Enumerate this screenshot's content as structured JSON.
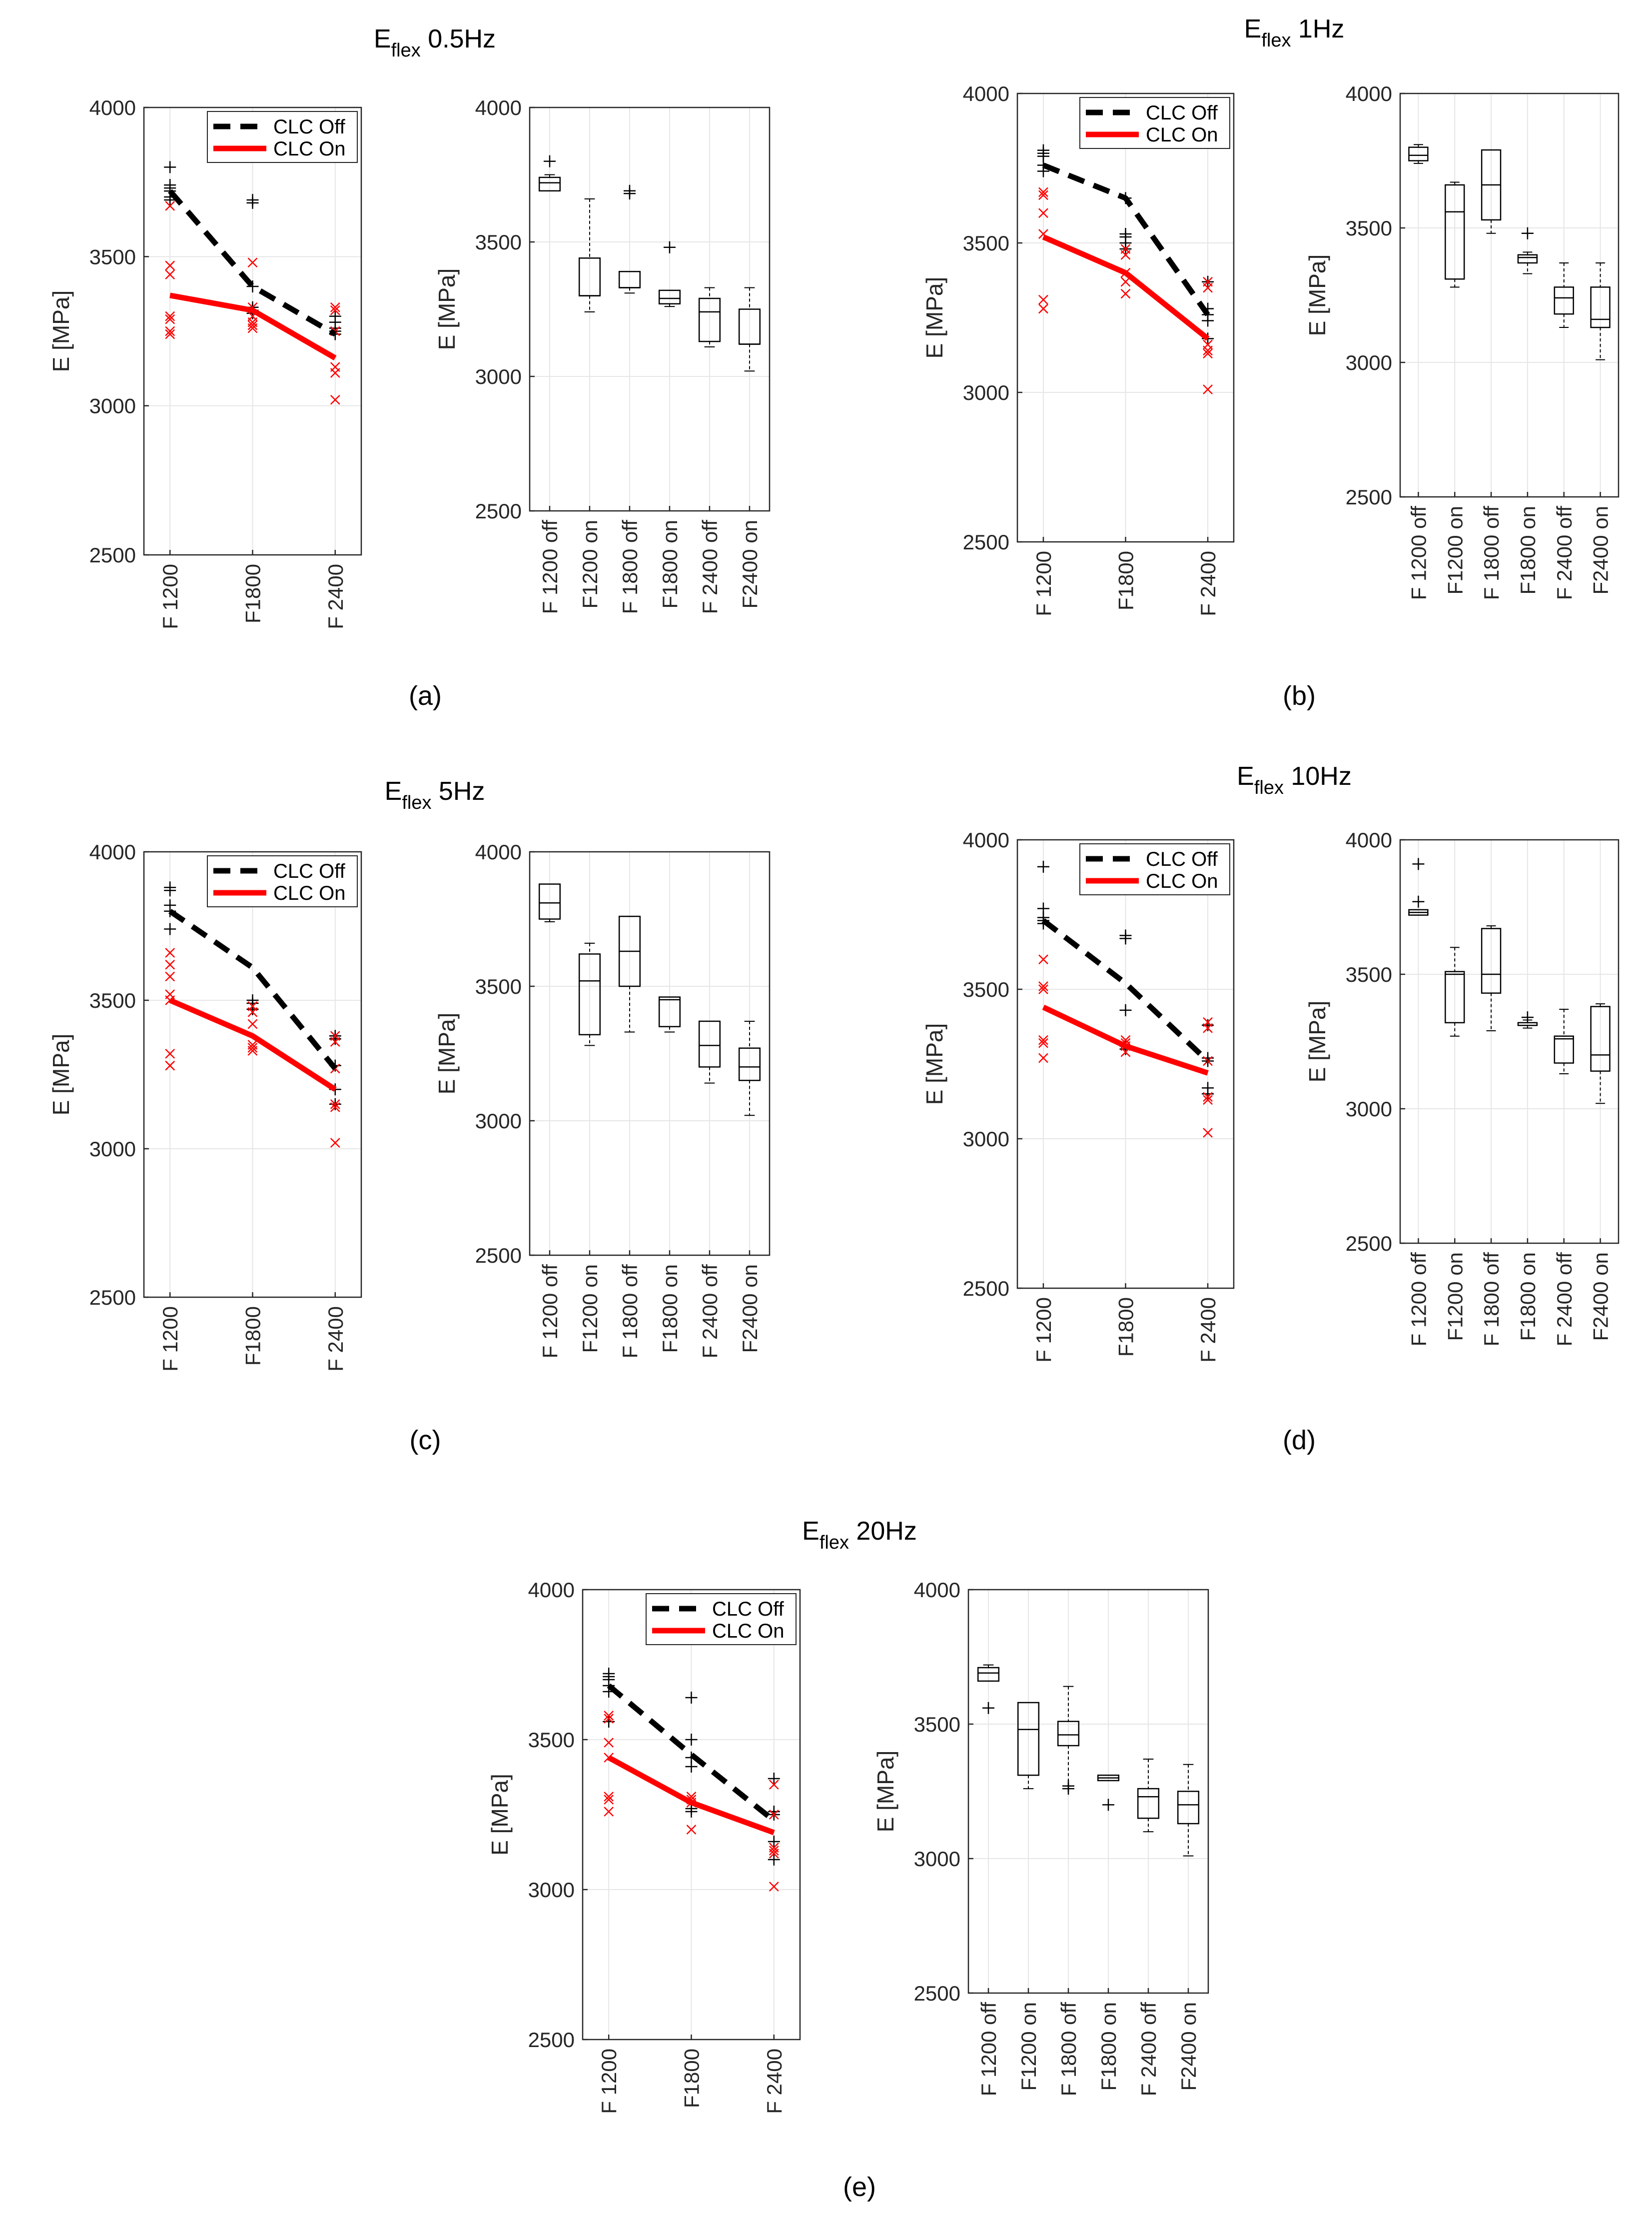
{
  "figure": {
    "panel_labels": [
      "(a)",
      "(b)",
      "(c)",
      "(d)",
      "(e)"
    ],
    "colors": {
      "clc_off": "#000000",
      "clc_on": "#ff0000",
      "grid": "#e6e6e6",
      "box": "#000000"
    }
  },
  "chart_data": [
    {
      "panel": "(a)",
      "title_main": "E",
      "title_sub": "flex",
      "title_rest": " 0.5Hz",
      "type": "line",
      "ylabel": "E [MPa]",
      "ylim": [
        2500,
        4000
      ],
      "yticks": [
        2500,
        3000,
        3500,
        4000
      ],
      "grid": true,
      "categories": [
        "F 1200",
        "F1800",
        "F 2400"
      ],
      "legend": {
        "placement": "top-right",
        "entries": [
          "CLC Off",
          "CLC On"
        ]
      },
      "series": [
        {
          "name": "CLC Off",
          "style": "dashed",
          "values": [
            3720,
            3400,
            3240
          ],
          "points": [
            [
              3800,
              3740,
              3730,
              3720,
              3700,
              3690
            ],
            [
              3690,
              3680,
              3400,
              3330,
              3320,
              3310
            ],
            [
              3300,
              3280,
              3260,
              3250,
              3240
            ]
          ]
        },
        {
          "name": "CLC On",
          "style": "solid",
          "values": [
            3370,
            3320,
            3160
          ],
          "points": [
            [
              3670,
              3470,
              3440,
              3300,
              3290,
              3250,
              3240
            ],
            [
              3480,
              3330,
              3300,
              3280,
              3270,
              3260
            ],
            [
              3330,
              3320,
              3250,
              3130,
              3110,
              3020
            ]
          ]
        }
      ]
    },
    {
      "panel": "(a)",
      "type": "box",
      "ylabel": "E [MPa]",
      "ylim": [
        2500,
        4000
      ],
      "yticks": [
        2500,
        3000,
        3500,
        4000
      ],
      "grid": true,
      "categories": [
        "F 1200 off",
        "F1200 on",
        "F 1800 off",
        "F1800 on",
        "F 2400 off",
        "F2400 on"
      ],
      "boxes": [
        {
          "wlo": 3690,
          "q1": 3690,
          "med": 3720,
          "q3": 3740,
          "whi": 3750,
          "out": [
            3800
          ]
        },
        {
          "wlo": 3240,
          "q1": 3300,
          "med": 3300,
          "q3": 3440,
          "whi": 3660,
          "out": []
        },
        {
          "wlo": 3310,
          "q1": 3330,
          "med": 3330,
          "q3": 3390,
          "whi": 3390,
          "out": [
            3690,
            3680
          ]
        },
        {
          "wlo": 3260,
          "q1": 3270,
          "med": 3290,
          "q3": 3320,
          "whi": 3320,
          "out": [
            3480
          ]
        },
        {
          "wlo": 3110,
          "q1": 3130,
          "med": 3240,
          "q3": 3290,
          "whi": 3330,
          "out": []
        },
        {
          "wlo": 3020,
          "q1": 3120,
          "med": 3120,
          "q3": 3250,
          "whi": 3330,
          "out": []
        }
      ]
    },
    {
      "panel": "(b)",
      "title_main": "E",
      "title_sub": "flex",
      "title_rest": " 1Hz",
      "type": "line",
      "ylabel": "E [MPa]",
      "ylim": [
        2500,
        4000
      ],
      "yticks": [
        2500,
        3000,
        3500,
        4000
      ],
      "grid": true,
      "categories": [
        "F 1200",
        "F1800",
        "F 2400"
      ],
      "legend": {
        "placement": "top-right",
        "entries": [
          "CLC Off",
          "CLC On"
        ]
      },
      "series": [
        {
          "name": "CLC Off",
          "style": "dashed",
          "values": [
            3760,
            3650,
            3260
          ],
          "points": [
            [
              3810,
              3800,
              3790,
              3760,
              3740
            ],
            [
              3650,
              3530,
              3520,
              3500,
              3480
            ],
            [
              3370,
              3280,
              3260,
              3240,
              3180
            ]
          ]
        },
        {
          "name": "CLC On",
          "style": "solid",
          "values": [
            3520,
            3400,
            3180
          ],
          "points": [
            [
              3670,
              3660,
              3600,
              3530,
              3310,
              3280
            ],
            [
              3480,
              3460,
              3400,
              3370,
              3330
            ],
            [
              3370,
              3350,
              3160,
              3140,
              3130,
              3010
            ]
          ]
        }
      ]
    },
    {
      "panel": "(b)",
      "type": "box",
      "ylabel": "E [MPa]",
      "ylim": [
        2500,
        4000
      ],
      "yticks": [
        2500,
        3000,
        3500,
        4000
      ],
      "grid": true,
      "categories": [
        "F 1200 off",
        "F1200 on",
        "F 1800 off",
        "F1800 on",
        "F 2400 off",
        "F2400 on"
      ],
      "boxes": [
        {
          "wlo": 3740,
          "q1": 3750,
          "med": 3770,
          "q3": 3800,
          "whi": 3810,
          "out": []
        },
        {
          "wlo": 3280,
          "q1": 3310,
          "med": 3560,
          "q3": 3660,
          "whi": 3670,
          "out": []
        },
        {
          "wlo": 3480,
          "q1": 3530,
          "med": 3660,
          "q3": 3790,
          "whi": 3790,
          "out": []
        },
        {
          "wlo": 3330,
          "q1": 3370,
          "med": 3390,
          "q3": 3400,
          "whi": 3410,
          "out": [
            3480
          ]
        },
        {
          "wlo": 3130,
          "q1": 3180,
          "med": 3240,
          "q3": 3280,
          "whi": 3370,
          "out": []
        },
        {
          "wlo": 3010,
          "q1": 3130,
          "med": 3160,
          "q3": 3280,
          "whi": 3370,
          "out": []
        }
      ]
    },
    {
      "panel": "(c)",
      "title_main": "E",
      "title_sub": "flex",
      "title_rest": " 5Hz",
      "type": "line",
      "ylabel": "E [MPa]",
      "ylim": [
        2500,
        4000
      ],
      "yticks": [
        2500,
        3000,
        3500,
        4000
      ],
      "grid": true,
      "categories": [
        "F 1200",
        "F1800",
        "F 2400"
      ],
      "legend": {
        "placement": "top-right",
        "entries": [
          "CLC Off",
          "CLC On"
        ]
      },
      "series": [
        {
          "name": "CLC Off",
          "style": "dashed",
          "values": [
            3800,
            3610,
            3270
          ],
          "points": [
            [
              3880,
              3870,
              3820,
              3800,
              3740
            ],
            [
              3500,
              3490,
              3470
            ],
            [
              3380,
              3370,
              3280,
              3200,
              3150
            ]
          ]
        },
        {
          "name": "CLC On",
          "style": "solid",
          "values": [
            3500,
            3380,
            3200
          ],
          "points": [
            [
              3660,
              3620,
              3580,
              3520,
              3500,
              3320,
              3280
            ],
            [
              3480,
              3460,
              3420,
              3350,
              3340,
              3330
            ],
            [
              3380,
              3360,
              3270,
              3150,
              3140,
              3020
            ]
          ]
        }
      ]
    },
    {
      "panel": "(c)",
      "type": "box",
      "ylabel": "E [MPa]",
      "ylim": [
        2500,
        4000
      ],
      "yticks": [
        2500,
        3000,
        3500,
        4000
      ],
      "grid": true,
      "categories": [
        "F 1200 off",
        "F1200 on",
        "F 1800 off",
        "F1800 on",
        "F 2400 off",
        "F2400 on"
      ],
      "boxes": [
        {
          "wlo": 3740,
          "q1": 3750,
          "med": 3810,
          "q3": 3880,
          "whi": 3880,
          "out": []
        },
        {
          "wlo": 3280,
          "q1": 3320,
          "med": 3520,
          "q3": 3620,
          "whi": 3660,
          "out": []
        },
        {
          "wlo": 3330,
          "q1": 3500,
          "med": 3630,
          "q3": 3760,
          "whi": 3760,
          "out": []
        },
        {
          "wlo": 3330,
          "q1": 3350,
          "med": 3450,
          "q3": 3460,
          "whi": 3460,
          "out": []
        },
        {
          "wlo": 3140,
          "q1": 3200,
          "med": 3280,
          "q3": 3370,
          "whi": 3370,
          "out": []
        },
        {
          "wlo": 3020,
          "q1": 3150,
          "med": 3200,
          "q3": 3270,
          "whi": 3370,
          "out": []
        }
      ]
    },
    {
      "panel": "(d)",
      "title_main": "E",
      "title_sub": "flex",
      "title_rest": " 10Hz",
      "type": "line",
      "ylabel": "E [MPa]",
      "ylim": [
        2500,
        4000
      ],
      "yticks": [
        2500,
        3000,
        3500,
        4000
      ],
      "grid": true,
      "categories": [
        "F 1200",
        "F1800",
        "F 2400"
      ],
      "legend": {
        "placement": "top-right",
        "entries": [
          "CLC Off",
          "CLC On"
        ]
      },
      "series": [
        {
          "name": "CLC Off",
          "style": "dashed",
          "values": [
            3730,
            3520,
            3260
          ],
          "points": [
            [
              3910,
              3770,
              3740,
              3730,
              3720
            ],
            [
              3680,
              3670,
              3430,
              3310,
              3300
            ],
            [
              3380,
              3270,
              3260,
              3170,
              3150
            ]
          ]
        },
        {
          "name": "CLC On",
          "style": "solid",
          "values": [
            3440,
            3310,
            3220
          ],
          "points": [
            [
              3600,
              3510,
              3500,
              3330,
              3320,
              3270
            ],
            [
              3330,
              3320,
              3310,
              3290
            ],
            [
              3390,
              3370,
              3260,
              3140,
              3130,
              3020
            ]
          ]
        }
      ]
    },
    {
      "panel": "(d)",
      "type": "box",
      "ylabel": "E [MPa]",
      "ylim": [
        2500,
        4000
      ],
      "yticks": [
        2500,
        3000,
        3500,
        4000
      ],
      "grid": true,
      "categories": [
        "F 1200 off",
        "F1200 on",
        "F 1800 off",
        "F1800 on",
        "F 2400 off",
        "F2400 on"
      ],
      "boxes": [
        {
          "wlo": 3720,
          "q1": 3720,
          "med": 3730,
          "q3": 3740,
          "whi": 3740,
          "out": [
            3910,
            3770
          ]
        },
        {
          "wlo": 3270,
          "q1": 3320,
          "med": 3500,
          "q3": 3510,
          "whi": 3600,
          "out": []
        },
        {
          "wlo": 3290,
          "q1": 3430,
          "med": 3500,
          "q3": 3670,
          "whi": 3680,
          "out": []
        },
        {
          "wlo": 3300,
          "q1": 3310,
          "med": 3310,
          "q3": 3320,
          "whi": 3330,
          "out": [
            3340
          ]
        },
        {
          "wlo": 3130,
          "q1": 3170,
          "med": 3260,
          "q3": 3270,
          "whi": 3370,
          "out": []
        },
        {
          "wlo": 3020,
          "q1": 3140,
          "med": 3200,
          "q3": 3380,
          "whi": 3390,
          "out": []
        }
      ]
    },
    {
      "panel": "(e)",
      "title_main": "E",
      "title_sub": "flex",
      "title_rest": " 20Hz",
      "type": "line",
      "ylabel": "E [MPa]",
      "ylim": [
        2500,
        4000
      ],
      "yticks": [
        2500,
        3000,
        3500,
        4000
      ],
      "grid": true,
      "categories": [
        "F 1200",
        "F1800",
        "F 2400"
      ],
      "legend": {
        "placement": "top-right",
        "entries": [
          "CLC Off",
          "CLC On"
        ]
      },
      "series": [
        {
          "name": "CLC Off",
          "style": "dashed",
          "values": [
            3680,
            3450,
            3230
          ],
          "points": [
            [
              3720,
              3710,
              3700,
              3680,
              3660,
              3560
            ],
            [
              3640,
              3500,
              3440,
              3410,
              3270,
              3260
            ],
            [
              3370,
              3260,
              3250,
              3160,
              3100
            ]
          ]
        },
        {
          "name": "CLC On",
          "style": "solid",
          "values": [
            3440,
            3290,
            3190
          ],
          "points": [
            [
              3580,
              3570,
              3490,
              3440,
              3310,
              3300,
              3260
            ],
            [
              3310,
              3300,
              3290,
              3200
            ],
            [
              3350,
              3250,
              3140,
              3130,
              3120,
              3010
            ]
          ]
        }
      ]
    },
    {
      "panel": "(e)",
      "type": "box",
      "ylabel": "E [MPa]",
      "ylim": [
        2500,
        4000
      ],
      "yticks": [
        2500,
        3000,
        3500,
        4000
      ],
      "grid": true,
      "categories": [
        "F 1200 off",
        "F1200 on",
        "F 1800 off",
        "F1800 on",
        "F 2400 off",
        "F2400 on"
      ],
      "boxes": [
        {
          "wlo": 3660,
          "q1": 3660,
          "med": 3690,
          "q3": 3710,
          "whi": 3720,
          "out": [
            3560
          ]
        },
        {
          "wlo": 3260,
          "q1": 3310,
          "med": 3480,
          "q3": 3580,
          "whi": 3580,
          "out": []
        },
        {
          "wlo": 3270,
          "q1": 3420,
          "med": 3460,
          "q3": 3510,
          "whi": 3640,
          "out": [
            3270,
            3260
          ]
        },
        {
          "wlo": 3290,
          "q1": 3290,
          "med": 3300,
          "q3": 3310,
          "whi": 3310,
          "out": [
            3200
          ]
        },
        {
          "wlo": 3100,
          "q1": 3150,
          "med": 3230,
          "q3": 3260,
          "whi": 3370,
          "out": []
        },
        {
          "wlo": 3010,
          "q1": 3130,
          "med": 3200,
          "q3": 3250,
          "whi": 3350,
          "out": []
        }
      ]
    }
  ]
}
